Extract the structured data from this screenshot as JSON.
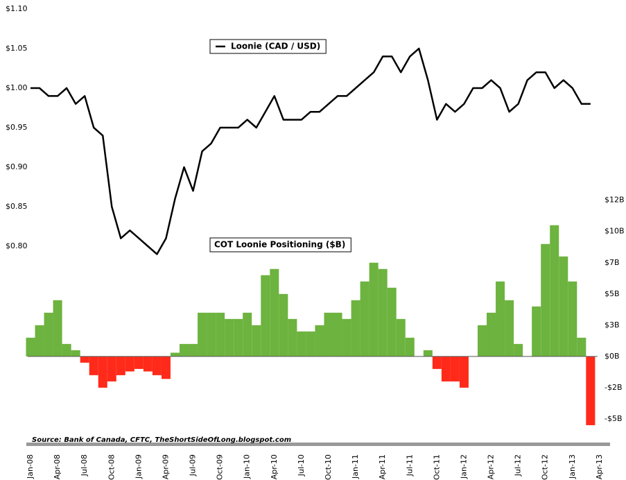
{
  "chart_data": {
    "type": "combo",
    "annotation": "Source: Bank of Canada, CFTC, TheShortSideOfLong.blogspot.com",
    "categories": [
      "Jan-08",
      null,
      null,
      "Apr-08",
      null,
      null,
      "Jul-08",
      null,
      null,
      "Oct-08",
      null,
      null,
      "Jan-09",
      null,
      null,
      "Apr-09",
      null,
      null,
      "Jul-09",
      null,
      null,
      "Oct-09",
      null,
      null,
      "Jan-10",
      null,
      null,
      "Apr-10",
      null,
      null,
      "Jul-10",
      null,
      null,
      "Oct-10",
      null,
      null,
      "Jan-11",
      null,
      null,
      "Apr-11",
      null,
      null,
      "Jul-11",
      null,
      null,
      "Oct-11",
      null,
      null,
      "Jan-12",
      null,
      null,
      "Apr-12",
      null,
      null,
      "Jul-12",
      null,
      null,
      "Oct-12",
      null,
      null,
      "Jan-13",
      null,
      null,
      "Apr-13"
    ],
    "series": [
      {
        "name": "Loonie (CAD / USD)",
        "type": "line",
        "color": "#000000",
        "values": [
          1.0,
          1.0,
          0.99,
          0.99,
          1.0,
          0.98,
          0.99,
          0.95,
          0.94,
          0.85,
          0.81,
          0.82,
          0.81,
          0.8,
          0.79,
          0.81,
          0.86,
          0.9,
          0.87,
          0.92,
          0.93,
          0.95,
          0.95,
          0.95,
          0.96,
          0.95,
          0.97,
          0.99,
          0.96,
          0.96,
          0.96,
          0.97,
          0.97,
          0.98,
          0.99,
          0.99,
          1.0,
          1.01,
          1.02,
          1.04,
          1.04,
          1.02,
          1.04,
          1.05,
          1.01,
          0.96,
          0.98,
          0.97,
          0.98,
          1.0,
          1.0,
          1.01,
          1.0,
          0.97,
          0.98,
          1.01,
          1.02,
          1.02,
          1.0,
          1.01,
          1.0,
          0.98,
          0.98,
          null
        ]
      },
      {
        "name": "COT Loonie Positioning ($B)",
        "type": "bar",
        "axis": "y2",
        "color": "#6db33f",
        "negative_color": "#ff2a1a",
        "values": [
          1.5,
          2.5,
          3.5,
          4.5,
          1,
          0.5,
          -0.5,
          -1.5,
          -2.5,
          -2,
          -1.5,
          -1.2,
          -1,
          -1.2,
          -1.5,
          -1.8,
          0.3,
          1,
          1,
          3.5,
          3.5,
          3.5,
          3,
          3,
          3.5,
          2.5,
          6.5,
          7,
          5,
          3,
          2,
          2,
          2.5,
          3.5,
          3.5,
          3,
          4.5,
          6,
          7.5,
          7,
          5.5,
          3,
          1.5,
          0,
          0.5,
          -1,
          -2,
          -2,
          -2.5,
          0,
          2.5,
          3.5,
          6,
          4.5,
          1,
          0,
          4,
          9,
          10.5,
          8,
          6,
          1.5,
          -5.5,
          null
        ]
      }
    ],
    "ylim": [
      0.55,
      1.1
    ],
    "yticks": [
      {
        "value": 0.8,
        "label": "$0.80"
      },
      {
        "value": 0.85,
        "label": "$0.85"
      },
      {
        "value": 0.9,
        "label": "$0.90"
      },
      {
        "value": 0.95,
        "label": "$0.95"
      },
      {
        "value": 1.0,
        "label": "$1.00"
      },
      {
        "value": 1.05,
        "label": "$1.05"
      },
      {
        "value": 1.1,
        "label": "$1.10"
      }
    ],
    "y2lim": [
      -7,
      27.8
    ],
    "y2ticks": [
      {
        "value": -5,
        "label": "-$5B"
      },
      {
        "value": -2.5,
        "label": "-$2B"
      },
      {
        "value": 0,
        "label": "$0B"
      },
      {
        "value": 2.5,
        "label": "$3B"
      },
      {
        "value": 5,
        "label": "$5B"
      },
      {
        "value": 7.5,
        "label": "$7B"
      },
      {
        "value": 10,
        "label": "$10B"
      },
      {
        "value": 12.5,
        "label": "$12B"
      }
    ]
  }
}
